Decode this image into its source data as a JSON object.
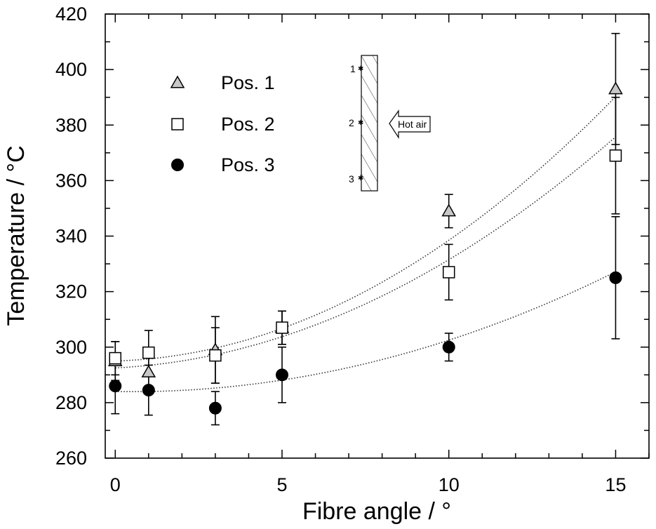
{
  "chart_data": {
    "type": "scatter",
    "title": "",
    "xlabel": "Fibre angle / °",
    "ylabel": "Temperature / °C",
    "xlim": [
      -0.3,
      16
    ],
    "ylim": [
      260,
      420
    ],
    "xticks": [
      0,
      5,
      10,
      15
    ],
    "yticks": [
      260,
      280,
      300,
      320,
      340,
      360,
      380,
      400,
      420
    ],
    "x_minor_step": 1,
    "y_minor_step": 10,
    "legend_position": "top-left",
    "series": [
      {
        "name": "Pos. 1",
        "marker": "triangle",
        "fill": "#c8c8c8",
        "x": [
          0,
          1,
          3,
          5,
          10,
          15
        ],
        "y": [
          295,
          291,
          299,
          307,
          349,
          393
        ],
        "err": [
          7,
          6,
          12,
          6,
          6,
          20
        ],
        "fit": [
          295,
          0.35,
          0.4
        ]
      },
      {
        "name": "Pos. 2",
        "marker": "square",
        "fill": "#ffffff",
        "x": [
          0,
          1,
          3,
          5,
          10,
          15
        ],
        "y": [
          296,
          298,
          297,
          307,
          327,
          369
        ],
        "err": [
          6,
          8,
          10,
          6,
          10,
          21
        ],
        "fit": [
          292.5,
          0.6,
          0.33
        ]
      },
      {
        "name": "Pos. 3",
        "marker": "circle",
        "fill": "#000000",
        "x": [
          0,
          1,
          3,
          5,
          10,
          15
        ],
        "y": [
          286,
          284.5,
          278,
          290,
          300,
          325
        ],
        "err": [
          10,
          9,
          6,
          10,
          5,
          22
        ],
        "fit": [
          284,
          -0.2,
          0.205
        ]
      }
    ],
    "inset": {
      "labels": [
        "1",
        "2",
        "3"
      ],
      "arrow_label": "Hot air"
    }
  }
}
